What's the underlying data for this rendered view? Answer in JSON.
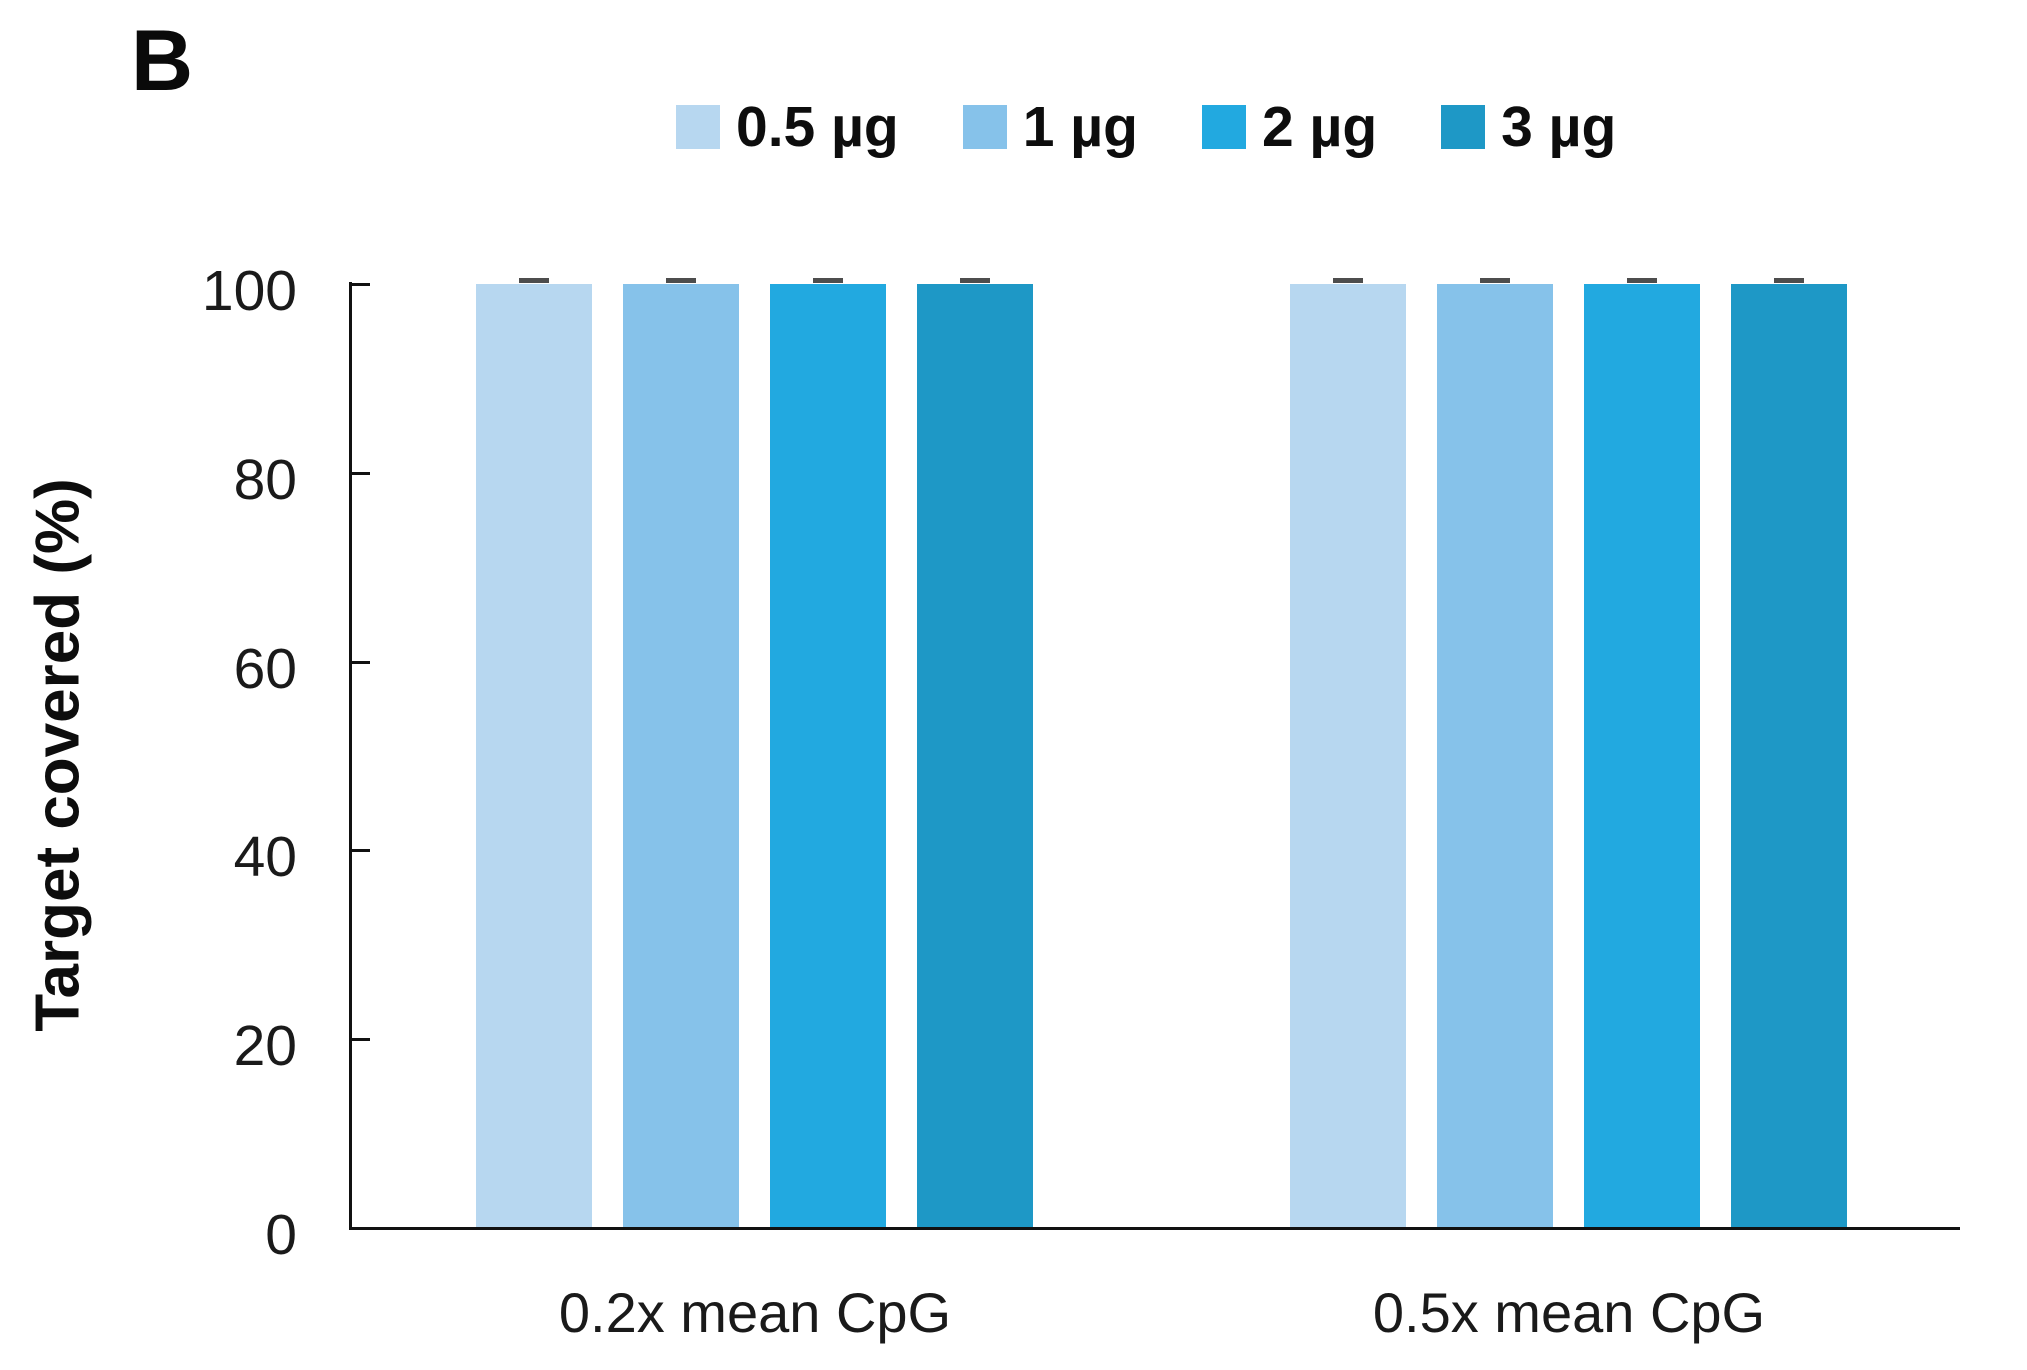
{
  "panel_label": "B",
  "legend": {
    "items": [
      {
        "label": "0.5 µg",
        "color": "#B7D7F0"
      },
      {
        "label": "1 µg",
        "color": "#86C2EA"
      },
      {
        "label": "2 µg",
        "color": "#22A9E0"
      },
      {
        "label": "3 µg",
        "color": "#1E98C6"
      }
    ]
  },
  "y_axis": {
    "title": "Target covered (%)",
    "tick_labels": [
      "0",
      "20",
      "40",
      "60",
      "80",
      "100"
    ]
  },
  "x_axis": {
    "groups": [
      "0.2x mean CpG",
      "0.5x mean CpG"
    ]
  },
  "chart_data": {
    "type": "bar",
    "title": "",
    "categories": [
      "0.2x mean CpG",
      "0.5x mean CpG"
    ],
    "series": [
      {
        "name": "0.5 µg",
        "color": "#B7D7F0",
        "values": [
          99.9,
          99.9
        ],
        "error": [
          0.3,
          0.3
        ]
      },
      {
        "name": "1 µg",
        "color": "#86C2EA",
        "values": [
          99.9,
          99.9
        ],
        "error": [
          0.3,
          0.3
        ]
      },
      {
        "name": "2 µg",
        "color": "#22A9E0",
        "values": [
          99.9,
          99.9
        ],
        "error": [
          0.3,
          0.3
        ]
      },
      {
        "name": "3 µg",
        "color": "#1E98C6",
        "values": [
          99.9,
          99.9
        ],
        "error": [
          0.3,
          0.3
        ]
      }
    ],
    "xlabel": "",
    "ylabel": "Target covered (%)",
    "ylim": [
      0,
      100
    ],
    "yticks": [
      0,
      20,
      40,
      60,
      80,
      100
    ],
    "legend_position": "top",
    "grid": false,
    "error_bar_color": "#4d4d4d",
    "axis_color": "#111111"
  }
}
